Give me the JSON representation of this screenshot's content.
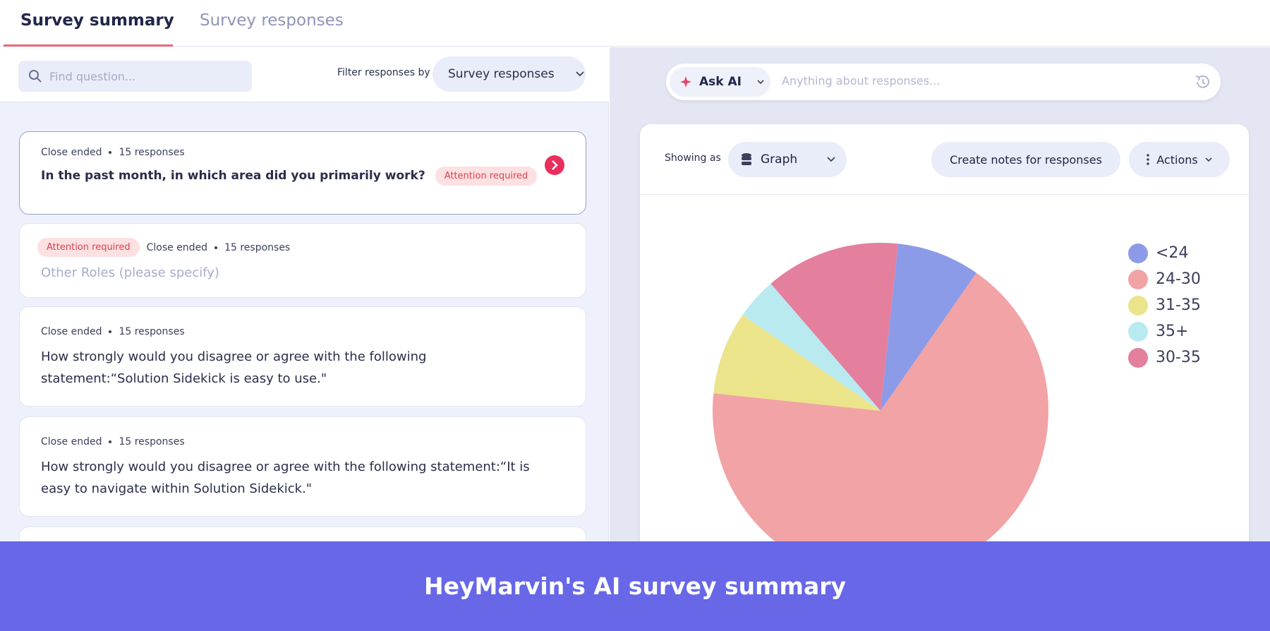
{
  "tabs": [
    "Survey summary",
    "Survey responses"
  ],
  "search_placeholder": "Find question...",
  "filter": {
    "label": "Filter responses by",
    "value": "Survey responses"
  },
  "questions": [
    {
      "type": "Close ended",
      "responses": "15 responses",
      "text": "In the past month, in which area did you primarily work?",
      "badge": "Attention required"
    },
    {
      "type": "Close ended",
      "responses": "15 responses",
      "text": "Other Roles (please specify)",
      "badge": "Attention required"
    },
    {
      "type": "Close ended",
      "responses": "15 responses",
      "text": "How strongly would you disagree or agree with the following statement:“Solution Sidekick is easy to use.\""
    },
    {
      "type": "Close ended",
      "responses": "15 responses",
      "text": "How strongly would you disagree or agree with the following statement:“It is easy to navigate within Solution Sidekick.\""
    }
  ],
  "ask_ai": {
    "button": "Ask AI",
    "placeholder": "Anything about responses..."
  },
  "toolbar": {
    "showing_as": "Showing as",
    "view": "Graph",
    "notes_button": "Create notes for responses",
    "actions": "Actions"
  },
  "chart_data": {
    "type": "pie",
    "categories": [
      "<24",
      "24-30",
      "31-35",
      "35+",
      "30-35"
    ],
    "values": [
      8,
      67,
      8,
      4,
      13
    ],
    "colors": [
      "#8b9be8",
      "#f2a3a5",
      "#ebe48a",
      "#b9eaf0",
      "#e47f9e"
    ],
    "legend": "right"
  },
  "banner": "HeyMarvin's AI survey summary"
}
